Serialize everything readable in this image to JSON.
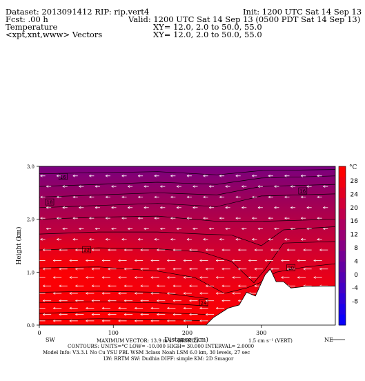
{
  "header": {
    "dataset": "Dataset: 2013091412   RIP: rip.vert4",
    "init": "Init: 1200 UTC Sat 14 Sep 13",
    "fcst": "Fcst:       .00 h",
    "valid": "Valid: 1200 UTC Sat 14 Sep 13 (0500 PDT Sat 14 Sep 13)",
    "field": "Temperature",
    "xy1": "XY=   12.0,   2.0 to   50.0, 55.0",
    "vectors": "<xpt,xnt,www> Vectors",
    "xy2": "XY=   12.0,   2.0 to   50.0, 55.0"
  },
  "chart_data": {
    "type": "heatmap",
    "xlabel": "Distance (km)",
    "ylabel": "Height (km)",
    "x_ticks": [
      0,
      100,
      200,
      300
    ],
    "y_ticks": [
      "0.0",
      "1.0",
      "2.0",
      "3.0"
    ],
    "xlim": [
      0,
      400
    ],
    "ylim": [
      0,
      3.0
    ],
    "left_end_label": "SW",
    "right_end_label": "NE",
    "colorbar": {
      "unit": "°C",
      "ticks": [
        28,
        24,
        20,
        16,
        12,
        8,
        4,
        0,
        -4,
        -8
      ],
      "colors": [
        "#ff0000",
        "#f20010",
        "#e20022",
        "#d20038",
        "#c0004c",
        "#ad0060",
        "#9b0074",
        "#880084",
        "#760094",
        "#6400a2",
        "#5400b2",
        "#4400c4",
        "#3000d8",
        "#1c00ea",
        "#0a00fa"
      ]
    },
    "contour_labels": [
      {
        "text": "16",
        "x": 32,
        "y": 2.8
      },
      {
        "text": "18",
        "x": 14,
        "y": 2.32
      },
      {
        "text": "16",
        "x": 356,
        "y": 2.53
      },
      {
        "text": "22",
        "x": 64,
        "y": 1.42
      },
      {
        "text": "24",
        "x": 222,
        "y": 0.42
      },
      {
        "text": "20",
        "x": 340,
        "y": 1.08
      }
    ],
    "terrain": [
      [
        0,
        0
      ],
      [
        225,
        0
      ],
      [
        235,
        0.14
      ],
      [
        255,
        0.32
      ],
      [
        270,
        0.38
      ],
      [
        280,
        0.62
      ],
      [
        292,
        0.55
      ],
      [
        305,
        0.95
      ],
      [
        312,
        1.06
      ],
      [
        320,
        0.82
      ],
      [
        330,
        0.82
      ],
      [
        340,
        0.7
      ],
      [
        360,
        0.73
      ],
      [
        400,
        0.74
      ]
    ]
  },
  "footer": {
    "line1_left": "MAXIMUM VECTOR:   13.9 m s⁻¹ (HORIZ)",
    "line1_right": "1.5 cm s⁻¹ (VERT)",
    "line2": "CONTOURS:   UNITS=°C   LOW=  -10.000        HIGH=   30.000        INTERVAL=     2.0000",
    "line3": "Model Info: V3.3.1     No Cu     YSU PBL    WSM 3class   Noah LSM   6.0 km,    30 levels,    27 sec",
    "line4": "LW: RRTM  SW: Dudhia   DIFF: simple  KM: 2D Smagor"
  }
}
